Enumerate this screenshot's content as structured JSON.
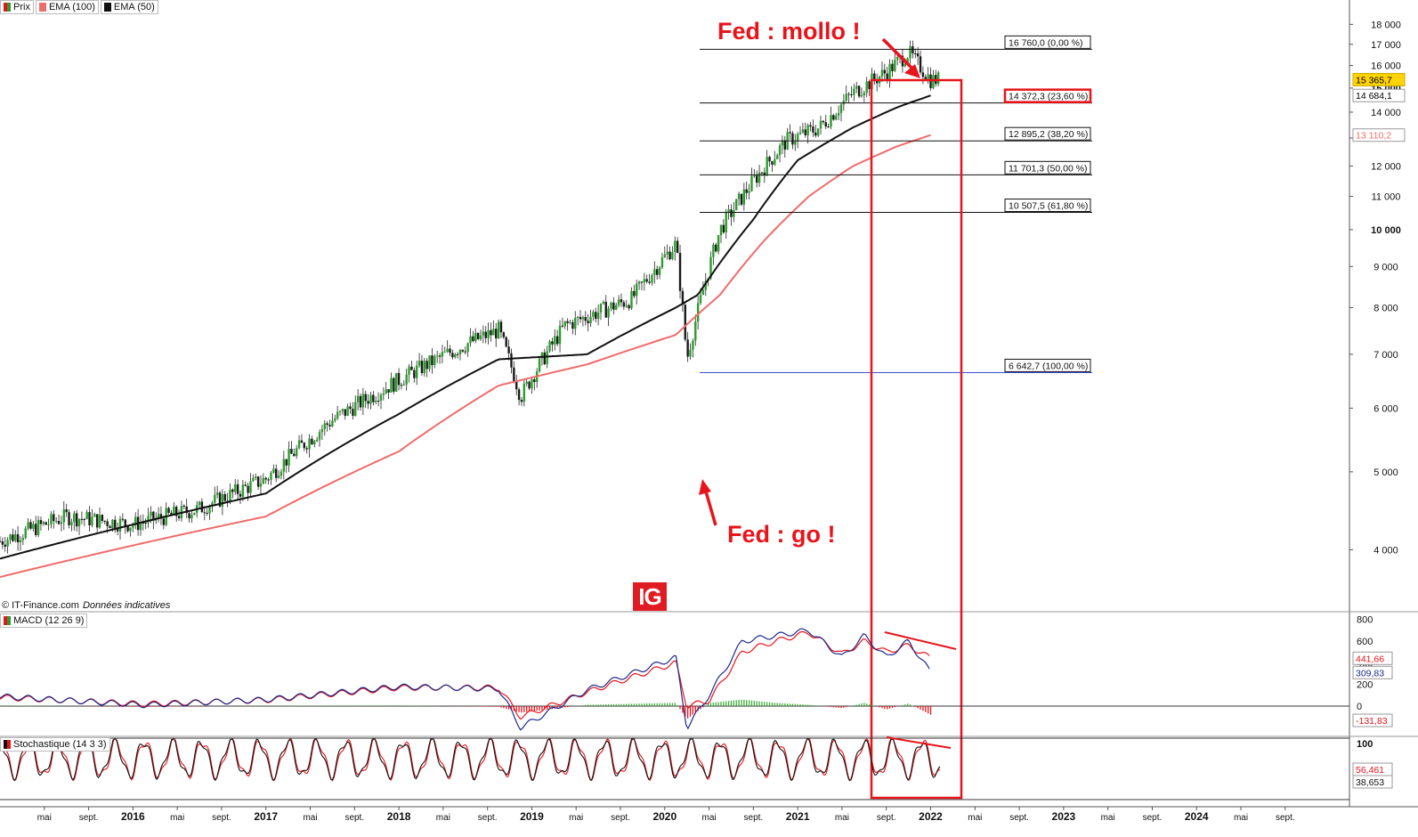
{
  "legend": {
    "main": [
      {
        "label": "Prix",
        "color": "#2a9d2a"
      },
      {
        "label": "EMA (100)",
        "color": "#f06b6b"
      },
      {
        "label": "EMA (50)",
        "color": "#111111"
      }
    ],
    "macd": {
      "label": "MACD (12 26 9)"
    },
    "stoch": {
      "label": "Stochastique (14 3 3)"
    }
  },
  "credit": {
    "source": "© IT-Finance.com",
    "note": "Données indicatives"
  },
  "logo": {
    "text": "IG"
  },
  "annotations": {
    "top": "Fed : mollo !",
    "bottom": "Fed : go !"
  },
  "chart_data": [
    {
      "type": "line",
      "series": [
        {
          "name": "Prix",
          "color": "#2a9d2a",
          "x": [
            "2015-01",
            "2015-07",
            "2016-01",
            "2016-07",
            "2017-01",
            "2017-07",
            "2018-01",
            "2018-07",
            "2018-10",
            "2018-12",
            "2019-04",
            "2019-07",
            "2019-10",
            "2020-02",
            "2020-03",
            "2020-06",
            "2020-09",
            "2020-12",
            "2021-03",
            "2021-06",
            "2021-09",
            "2021-11",
            "2022-01"
          ],
          "values": [
            4100,
            4400,
            4300,
            4500,
            4900,
            5800,
            6500,
            7200,
            7500,
            6200,
            7600,
            7900,
            8200,
            9600,
            6900,
            10000,
            11500,
            12900,
            13400,
            14800,
            15700,
            16600,
            15366
          ]
        },
        {
          "name": "EMA (100)",
          "color": "#f06b6b",
          "x": [
            "2015-01",
            "2016-01",
            "2017-01",
            "2018-01",
            "2018-10",
            "2019-06",
            "2020-02",
            "2020-06",
            "2020-10",
            "2021-02",
            "2021-06",
            "2021-10",
            "2022-01"
          ],
          "values": [
            3700,
            4050,
            4400,
            5300,
            6400,
            6800,
            7400,
            8300,
            9700,
            11000,
            12000,
            12700,
            13110
          ]
        },
        {
          "name": "EMA (50)",
          "color": "#111111",
          "x": [
            "2015-01",
            "2016-01",
            "2017-01",
            "2018-01",
            "2018-10",
            "2019-06",
            "2020-02",
            "2020-04",
            "2020-09",
            "2021-01",
            "2021-06",
            "2021-10",
            "2022-01"
          ],
          "values": [
            3900,
            4300,
            4700,
            5900,
            6900,
            7000,
            8000,
            8300,
            10300,
            12200,
            13400,
            14200,
            14684
          ]
        }
      ],
      "y_axis": {
        "ticks": [
          "4 000",
          "5 000",
          "6 000",
          "7 000",
          "8 000",
          "9 000",
          "10 000",
          "11 000",
          "12 000",
          "13 000",
          "14 000",
          "15 000",
          "16 000",
          "17 000",
          "18 000"
        ],
        "scale": "log"
      },
      "last_values": [
        {
          "text": "15 365,7",
          "bg": "#ffd400",
          "fg": "#000000"
        },
        {
          "text": "14 684,1",
          "bg": "#ffffff",
          "fg": "#000000"
        },
        {
          "text": "13 110,2",
          "bg": "#ffffff",
          "fg": "#f06b6b"
        }
      ],
      "fibonacci": [
        {
          "value": 16760.0,
          "label": "16 760,0 (0,00 %)",
          "highlight": false
        },
        {
          "value": 14372.3,
          "label": "14 372,3 (23,60 %)",
          "highlight": true
        },
        {
          "value": 12895.2,
          "label": "12 895,2 (38,20 %)",
          "highlight": false
        },
        {
          "value": 11701.3,
          "label": "11 701,3 (50,00 %)",
          "highlight": false
        },
        {
          "value": 10507.5,
          "label": "10 507,5 (61,80 %)",
          "highlight": false
        },
        {
          "value": 6642.7,
          "label": "6 642,7 (100,00 %)",
          "highlight": false
        }
      ]
    },
    {
      "type": "line",
      "name": "MACD (12 26 9)",
      "y_axis": {
        "ticks": [
          "800",
          "600",
          "400",
          "200",
          "0"
        ]
      },
      "last_values": [
        {
          "text": "441,66",
          "color": "#e8141b"
        },
        {
          "text": "309,83",
          "color": "#1c2a8c"
        },
        {
          "text": "-131,83",
          "color": "#e8141b"
        }
      ],
      "series": [
        {
          "name": "MACD",
          "color": "#1c2a8c",
          "x": [
            "2015-01",
            "2016-02",
            "2017-01",
            "2018-01",
            "2018-10",
            "2018-12",
            "2019-06",
            "2020-02",
            "2020-03",
            "2020-05",
            "2020-08",
            "2020-11",
            "2021-02",
            "2021-05",
            "2021-07",
            "2021-09",
            "2021-11",
            "2022-01"
          ],
          "values": [
            90,
            10,
            60,
            180,
            160,
            -200,
            150,
            450,
            -200,
            100,
            600,
            650,
            700,
            450,
            650,
            450,
            600,
            310
          ]
        },
        {
          "name": "Signal",
          "color": "#e8141b",
          "x": [
            "2015-01",
            "2016-02",
            "2017-01",
            "2018-01",
            "2018-10",
            "2018-12",
            "2019-06",
            "2020-02",
            "2020-03",
            "2020-05",
            "2020-08",
            "2020-11",
            "2021-02",
            "2021-05",
            "2021-07",
            "2021-09",
            "2021-11",
            "2022-01"
          ],
          "values": [
            80,
            20,
            55,
            170,
            170,
            -100,
            130,
            400,
            0,
            50,
            500,
            600,
            680,
            480,
            600,
            500,
            560,
            442
          ]
        }
      ]
    },
    {
      "type": "line",
      "name": "Stochastique (14 3 3)",
      "y_axis": {
        "ticks": [
          "100"
        ]
      },
      "last_values": [
        {
          "text": "56,461",
          "color": "#e8141b"
        },
        {
          "text": "38,653",
          "color": "#111111"
        }
      ]
    }
  ],
  "x_axis": {
    "labels": [
      {
        "text": "mai",
        "bold": false
      },
      {
        "text": "sept.",
        "bold": false
      },
      {
        "text": "2016",
        "bold": true
      },
      {
        "text": "mai",
        "bold": false
      },
      {
        "text": "sept.",
        "bold": false
      },
      {
        "text": "2017",
        "bold": true
      },
      {
        "text": "mai",
        "bold": false
      },
      {
        "text": "sept.",
        "bold": false
      },
      {
        "text": "2018",
        "bold": true
      },
      {
        "text": "mai",
        "bold": false
      },
      {
        "text": "sept.",
        "bold": false
      },
      {
        "text": "2019",
        "bold": true
      },
      {
        "text": "mai",
        "bold": false
      },
      {
        "text": "sept.",
        "bold": false
      },
      {
        "text": "2020",
        "bold": true
      },
      {
        "text": "mai",
        "bold": false
      },
      {
        "text": "sept.",
        "bold": false
      },
      {
        "text": "2021",
        "bold": true
      },
      {
        "text": "mai",
        "bold": false
      },
      {
        "text": "sept.",
        "bold": false
      },
      {
        "text": "2022",
        "bold": true
      },
      {
        "text": "mai",
        "bold": false
      },
      {
        "text": "sept.",
        "bold": false
      },
      {
        "text": "2023",
        "bold": true
      },
      {
        "text": "mai",
        "bold": false
      },
      {
        "text": "sept.",
        "bold": false
      },
      {
        "text": "2024",
        "bold": true
      },
      {
        "text": "mai",
        "bold": false
      },
      {
        "text": "sept.",
        "bold": false
      }
    ]
  }
}
